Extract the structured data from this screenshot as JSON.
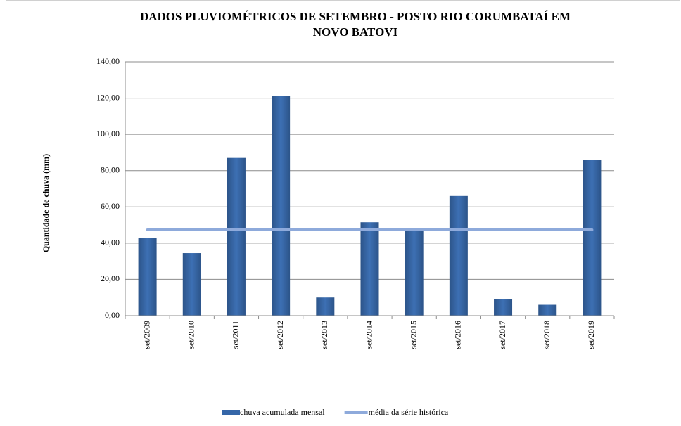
{
  "chart_data": {
    "type": "bar",
    "title": [
      "DADOS PLUVIOMÉTRICOS  DE SETEMBRO - POSTO RIO CORUMBATAÍ  EM",
      "NOVO BATOVI"
    ],
    "y_label": "Quantidade  de chuva  (mm)",
    "categories": [
      "set/2009",
      "set/2010",
      "set/2011",
      "set/2012",
      "set/2013",
      "set/2014",
      "set/2015",
      "set/2016",
      "set/2017",
      "set/2018",
      "set/2019"
    ],
    "series": [
      {
        "name": "chuva acumulada mensal",
        "type": "bar",
        "color": "#3566a8",
        "values": [
          43,
          34.5,
          87,
          121,
          10,
          51.5,
          47.5,
          66,
          9,
          6,
          86
        ]
      },
      {
        "name": "média da série histórica",
        "type": "line",
        "color": "#8eaadb",
        "values": [
          47.3,
          47.3,
          47.3,
          47.3,
          47.3,
          47.3,
          47.3,
          47.3,
          47.3,
          47.3,
          47.3
        ]
      }
    ],
    "ylim": [
      0,
      140
    ],
    "yticks": [
      {
        "value": 0,
        "label": "0,00"
      },
      {
        "value": 20,
        "label": "20,00"
      },
      {
        "value": 40,
        "label": "40,00"
      },
      {
        "value": 60,
        "label": "60,00"
      },
      {
        "value": 80,
        "label": "80,00"
      },
      {
        "value": 100,
        "label": "100,00"
      },
      {
        "value": 120,
        "label": "120,00"
      },
      {
        "value": 140,
        "label": "140,00"
      }
    ],
    "grid": true,
    "legend": "bottom"
  }
}
